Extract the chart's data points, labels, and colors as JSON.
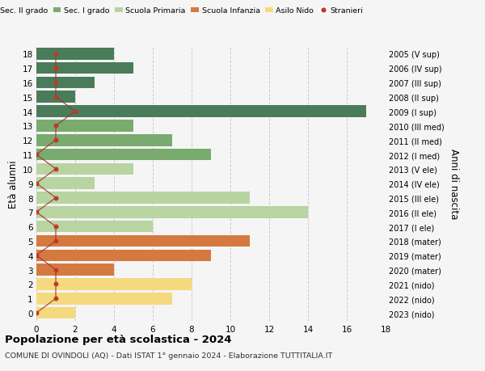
{
  "ages": [
    18,
    17,
    16,
    15,
    14,
    13,
    12,
    11,
    10,
    9,
    8,
    7,
    6,
    5,
    4,
    3,
    2,
    1,
    0
  ],
  "anni_nascita": [
    "2005 (V sup)",
    "2006 (IV sup)",
    "2007 (III sup)",
    "2008 (II sup)",
    "2009 (I sup)",
    "2010 (III med)",
    "2011 (II med)",
    "2012 (I med)",
    "2013 (V ele)",
    "2014 (IV ele)",
    "2015 (III ele)",
    "2016 (II ele)",
    "2017 (I ele)",
    "2018 (mater)",
    "2019 (mater)",
    "2020 (mater)",
    "2021 (nido)",
    "2022 (nido)",
    "2023 (nido)"
  ],
  "bar_values": [
    4,
    5,
    3,
    2,
    17,
    5,
    7,
    9,
    5,
    3,
    11,
    14,
    6,
    11,
    9,
    4,
    8,
    7,
    2
  ],
  "bar_colors": [
    "#4a7c59",
    "#4a7c59",
    "#4a7c59",
    "#4a7c59",
    "#4a7c59",
    "#7aab6e",
    "#7aab6e",
    "#7aab6e",
    "#b8d4a0",
    "#b8d4a0",
    "#b8d4a0",
    "#b8d4a0",
    "#b8d4a0",
    "#d47a40",
    "#d47a40",
    "#d47a40",
    "#f5d97e",
    "#f5d97e",
    "#f5d97e"
  ],
  "stranieri": [
    1,
    1,
    1,
    1,
    2,
    1,
    1,
    0,
    1,
    0,
    1,
    0,
    1,
    1,
    0,
    1,
    1,
    1,
    0
  ],
  "legend_labels": [
    "Sec. II grado",
    "Sec. I grado",
    "Scuola Primaria",
    "Scuola Infanzia",
    "Asilo Nido",
    "Stranieri"
  ],
  "legend_colors": [
    "#4a7c59",
    "#7aab6e",
    "#b8d4a0",
    "#d47a40",
    "#f5d97e",
    "#c0392b"
  ],
  "ylabel_left": "Età alunni",
  "ylabel_right": "Anni di nascita",
  "title": "Popolazione per età scolastica - 2024",
  "subtitle": "COMUNE DI OVINDOLI (AQ) - Dati ISTAT 1° gennaio 2024 - Elaborazione TUTTITALIA.IT",
  "xlim": [
    0,
    18
  ],
  "ylim_min": -0.55,
  "ylim_max": 18.55,
  "background_color": "#f5f5f5",
  "grid_color": "#cccccc",
  "bar_height": 0.82
}
